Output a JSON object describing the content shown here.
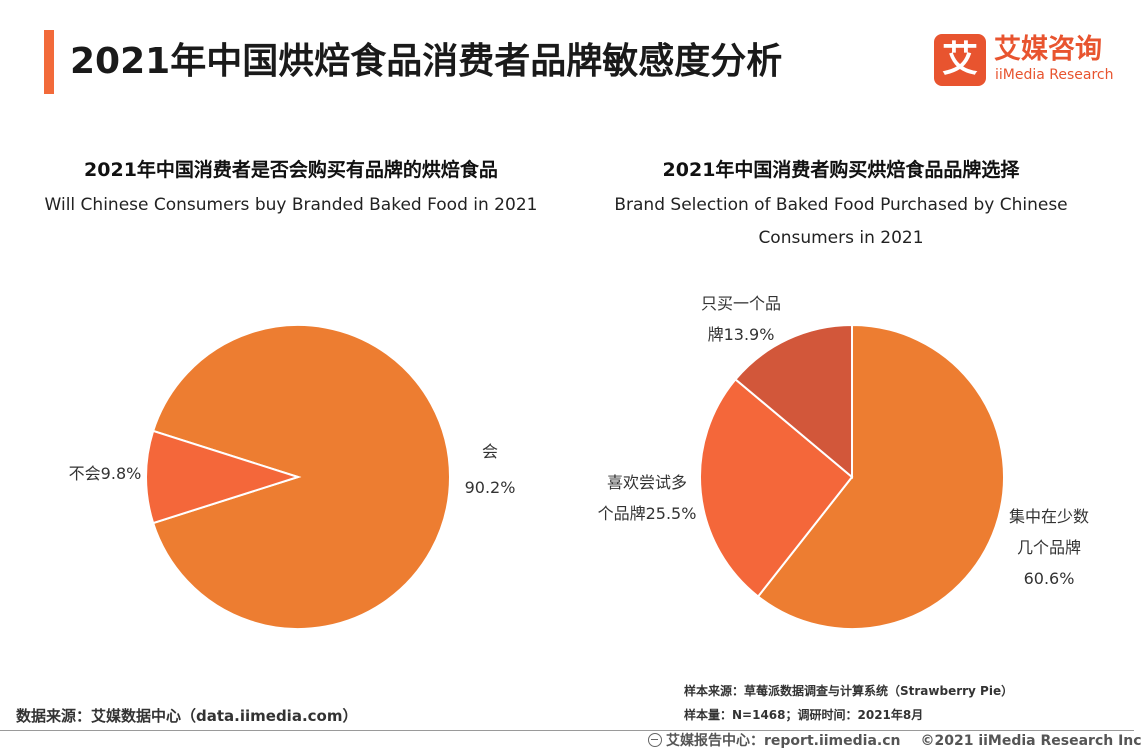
{
  "header": {
    "title": "2021年中国烘焙食品消费者品牌敏感度分析",
    "accent_color": "#f26a3a"
  },
  "logo": {
    "glyph": "艾",
    "name_cn": "艾媒咨询",
    "name_en": "iiMedia Research",
    "color": "#e8542f"
  },
  "chart_data": [
    {
      "type": "pie",
      "title": "2021年中国消费者是否会购买有品牌的烘焙食品",
      "subtitle": "Will Chinese Consumers buy Branded Baked Food in 2021",
      "slices": [
        {
          "label": "会",
          "value": 90.2,
          "display": "90.2%",
          "color": "#ed7d31"
        },
        {
          "label": "不会",
          "value": 9.8,
          "display": "不会9.8%",
          "color": "#f4673a"
        }
      ]
    },
    {
      "type": "pie",
      "title": "2021年中国消费者购买烘焙食品品牌选择",
      "subtitle": "Brand Selection of Baked Food Purchased by Chinese Consumers in 2021",
      "slices": [
        {
          "label": "集中在少数几个品牌",
          "value": 60.6,
          "display_lines": [
            "集中在少数",
            "几个品牌",
            "60.6%"
          ],
          "color": "#ed7d31"
        },
        {
          "label": "喜欢尝试多个品牌",
          "value": 25.5,
          "display_lines": [
            "喜欢尝试多",
            "个品牌25.5%"
          ],
          "color": "#f4673a"
        },
        {
          "label": "只买一个品牌",
          "value": 13.9,
          "display_lines": [
            "只买一个品",
            "牌13.9%"
          ],
          "color": "#d2573a"
        }
      ]
    }
  ],
  "footer": {
    "source": "数据来源：艾媒数据中心（data.iimedia.com）",
    "sample_source": "样本来源：草莓派数据调查与计算系统（Strawberry Pie）",
    "sample_size": "样本量：N=1468；调研时间：2021年8月",
    "site": "艾媒报告中心：report.iimedia.cn",
    "copyright": "©2021  iiMedia Research  Inc"
  }
}
